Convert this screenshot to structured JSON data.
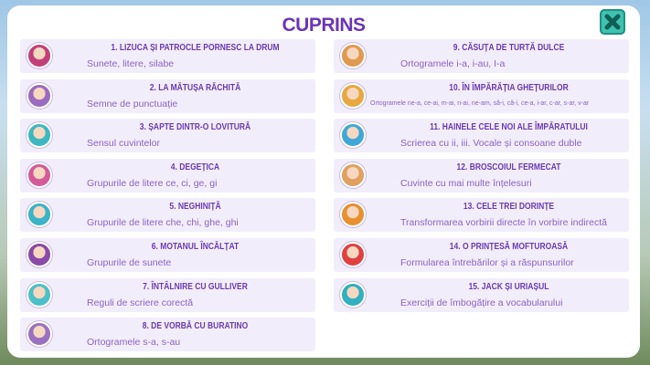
{
  "title": "CUPRINS",
  "close_icon": "close-x-icon",
  "colors": {
    "accent": "#6b34b8",
    "card_bg": "#f2edfb",
    "close_bg": "#3fc2b0"
  },
  "chapters": [
    {
      "title": "1. LIZUCA ȘI PATROCLE PORNESC LA DRUM",
      "subtitle": "Sunete, litere, silabe",
      "avatar_color": "#c2407a"
    },
    {
      "title": "2. LA MĂTUȘA RĂCHITĂ",
      "subtitle": "Semne de punctuație",
      "avatar_color": "#9a6bc0"
    },
    {
      "title": "3. ȘAPTE DINTR-O LOVITURĂ",
      "subtitle": "Sensul cuvintelor",
      "avatar_color": "#3db8c0"
    },
    {
      "title": "4. DEGEȚICA",
      "subtitle": "Grupurile de litere ce, ci, ge, gi",
      "avatar_color": "#d45a9a"
    },
    {
      "title": "5. NEGHINIȚĂ",
      "subtitle": "Grupurile de litere che, chi, ghe, ghi",
      "avatar_color": "#3bb3c8"
    },
    {
      "title": "6. MOTANUL ÎNCĂLȚAT",
      "subtitle": "Grupurile de sunete",
      "avatar_color": "#8a4aa8"
    },
    {
      "title": "7. ÎNTÂLNIRE CU GULLIVER",
      "subtitle": "Reguli de scriere corectă",
      "avatar_color": "#4cc0c8"
    },
    {
      "title": "8. DE VORBĂ CU BURATINO",
      "subtitle": "Ortogramele s-a, s-au",
      "avatar_color": "#9a70c0"
    },
    {
      "title": "9. CĂSUȚA DE TURTĂ DULCE",
      "subtitle": "Ortogramele i-a, i-au, I-a",
      "avatar_color": "#e09a50"
    },
    {
      "title": "10. ÎN ÎMPĂRĂȚIA GHEȚURILOR",
      "subtitle": "Ortogramele ne-a, ce-ai, m-ai, n-ai, ne-am, să-i, că-i, ce-a, i-ar, c-ar, s-ar, v-ar",
      "avatar_color": "#e8a840"
    },
    {
      "title": "11. HAINELE CELE NOI ALE ÎMPĂRATULUI",
      "subtitle": "Scrierea cu ii, iii. Vocale și consoane duble",
      "avatar_color": "#40a8d8"
    },
    {
      "title": "12. BROSCOIUL FERMECAT",
      "subtitle": "Cuvinte cu mai multe înțelesuri",
      "avatar_color": "#e0a060"
    },
    {
      "title": "13. CELE TREI DORINȚE",
      "subtitle": "Transformarea vorbirii directe în vorbire indirectă",
      "avatar_color": "#e89030"
    },
    {
      "title": "14. O PRINȚESĂ MOFTUROASĂ",
      "subtitle": "Formularea întrebărilor și a răspunsurilor",
      "avatar_color": "#e04040"
    },
    {
      "title": "15. JACK ȘI URIAȘUL",
      "subtitle": "Exerciții de îmbogățire a vocabularului",
      "avatar_color": "#30b0c0"
    }
  ]
}
